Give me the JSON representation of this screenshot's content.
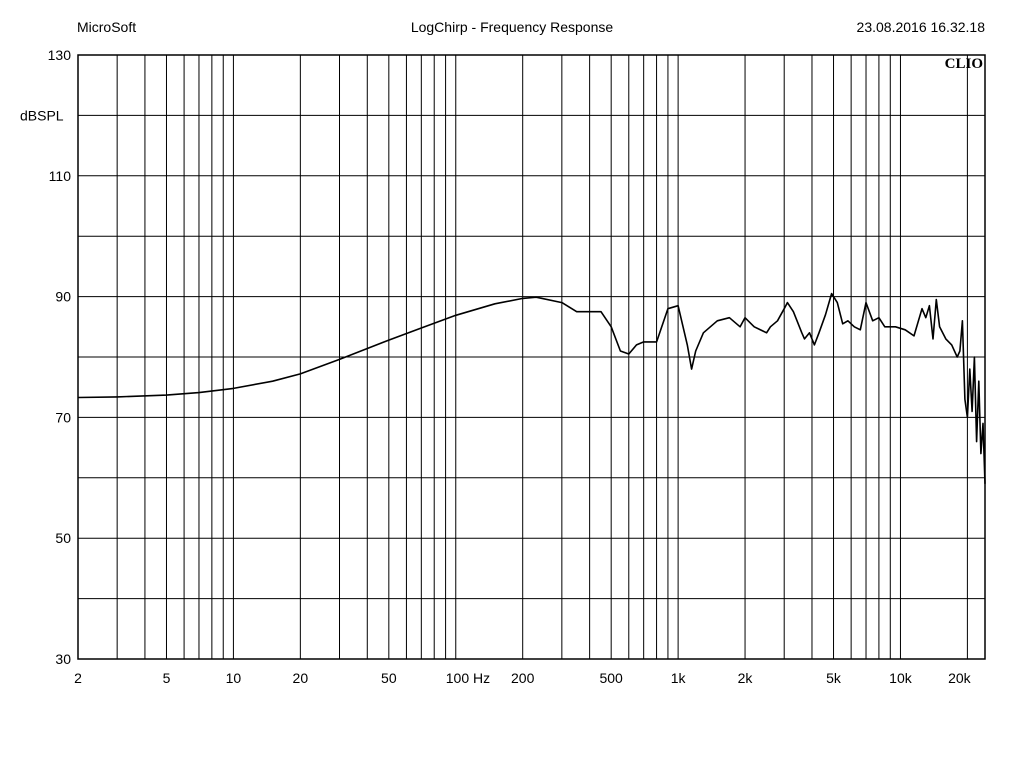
{
  "header": {
    "left": "MicroSoft",
    "center": "LogChirp - Frequency Response",
    "right": "23.08.2016 16.32.18"
  },
  "brand": "CLIO",
  "chart_data": {
    "type": "line",
    "title": "LogChirp - Frequency Response",
    "xscale": "log",
    "xlim": [
      2,
      24000
    ],
    "ylim": [
      30,
      130
    ],
    "ylabel": "dBSPL",
    "grid": true,
    "x_tick_labels": [
      {
        "v": 2,
        "label": "2"
      },
      {
        "v": 5,
        "label": "5"
      },
      {
        "v": 10,
        "label": "10"
      },
      {
        "v": 20,
        "label": "20"
      },
      {
        "v": 50,
        "label": "50"
      },
      {
        "v": 100,
        "label": "100 Hz"
      },
      {
        "v": 200,
        "label": "200"
      },
      {
        "v": 500,
        "label": "500"
      },
      {
        "v": 1000,
        "label": "1k"
      },
      {
        "v": 2000,
        "label": "2k"
      },
      {
        "v": 5000,
        "label": "5k"
      },
      {
        "v": 10000,
        "label": "10k"
      },
      {
        "v": 20000,
        "label": "20k"
      }
    ],
    "y_tick_labels": [
      {
        "v": 130,
        "label": "130"
      },
      {
        "v": 110,
        "label": "110"
      },
      {
        "v": 90,
        "label": "90"
      },
      {
        "v": 70,
        "label": "70"
      },
      {
        "v": 50,
        "label": "50"
      },
      {
        "v": 30,
        "label": "30"
      }
    ],
    "series": [
      {
        "color": "#000000",
        "x": [
          2,
          3,
          5,
          7,
          10,
          15,
          20,
          30,
          40,
          50,
          70,
          100,
          150,
          200,
          230,
          300,
          350,
          450,
          500,
          550,
          600,
          650,
          700,
          800,
          900,
          1000,
          1100,
          1150,
          1200,
          1300,
          1500,
          1700,
          1900,
          2000,
          2200,
          2500,
          2600,
          2800,
          3000,
          3100,
          3300,
          3600,
          3700,
          3900,
          4100,
          4300,
          4600,
          4900,
          5200,
          5500,
          5800,
          6200,
          6600,
          7000,
          7500,
          8000,
          8500,
          9000,
          9500,
          10500,
          11500,
          12500,
          13000,
          13500,
          14000,
          14500,
          15000,
          16000,
          17000,
          18000,
          18500,
          19000,
          19500,
          20000,
          20500,
          21000,
          21500,
          22000,
          22500,
          23000,
          23500,
          24000
        ],
        "y": [
          73.3,
          73.4,
          73.7,
          74.1,
          74.8,
          76,
          77.2,
          79.6,
          81.4,
          82.8,
          84.8,
          86.9,
          88.8,
          89.7,
          89.9,
          89,
          87.5,
          87.5,
          85,
          81,
          80.5,
          82,
          82.5,
          82.5,
          88,
          88.5,
          82,
          78,
          81,
          84,
          86,
          86.5,
          85,
          86.5,
          85,
          84,
          85,
          86,
          88,
          89,
          87.5,
          84,
          83,
          84,
          82,
          84,
          87,
          90.5,
          89,
          85.5,
          86,
          85,
          84.5,
          89,
          86,
          86.5,
          85,
          85,
          85,
          84.5,
          83.5,
          88,
          86.5,
          88.5,
          83,
          89.5,
          85,
          83,
          82,
          80,
          81,
          86,
          73,
          70,
          78,
          71,
          80,
          66,
          76,
          64,
          69,
          59
        ]
      }
    ]
  }
}
